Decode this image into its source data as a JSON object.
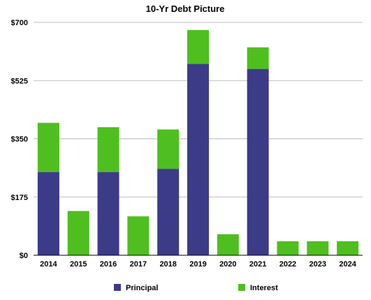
{
  "chart_data": {
    "type": "bar",
    "stacked": true,
    "title": "10-Yr Debt Picture",
    "xlabel": "",
    "ylabel": "",
    "categories": [
      "2014",
      "2015",
      "2016",
      "2017",
      "2018",
      "2019",
      "2020",
      "2021",
      "2022",
      "2023",
      "2024"
    ],
    "series": [
      {
        "name": "Principal",
        "color": "#3b3b88",
        "values": [
          250,
          0,
          250,
          0,
          260,
          575,
          0,
          560,
          0,
          0,
          0
        ]
      },
      {
        "name": "Interest",
        "color": "#4fbf1f",
        "values": [
          148,
          133,
          135,
          117,
          118,
          102,
          63,
          65,
          42,
          42,
          42
        ]
      }
    ],
    "ylim": [
      0,
      700
    ],
    "yticks": [
      0,
      175,
      350,
      525,
      700
    ],
    "ytick_labels": [
      "$0",
      "$175",
      "$350",
      "$525",
      "$700"
    ],
    "grid": true,
    "legend": "bottom"
  }
}
